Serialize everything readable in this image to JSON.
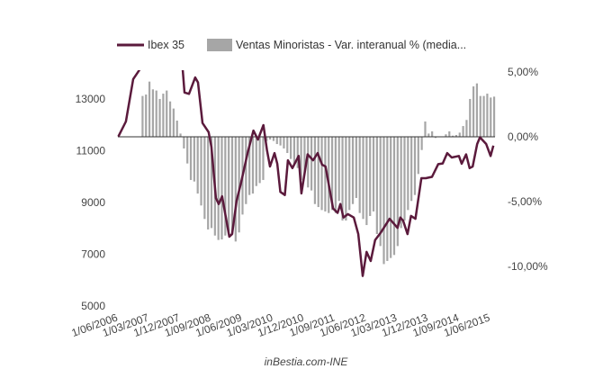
{
  "chart_data": {
    "type": "bar+line",
    "x_unit": "months since 2006-06",
    "legend": [
      {
        "name": "Ibex 35",
        "kind": "line",
        "color": "#5b1a3c"
      },
      {
        "name": "Ventas Minoristas - Var. interanual % (media...",
        "kind": "bar",
        "color": "#a6a6a6"
      }
    ],
    "legend_position": "top",
    "left_axis": {
      "ticks": [
        "13000",
        "11000",
        "9000",
        "7000",
        "5000"
      ],
      "tick_values": [
        13000,
        11000,
        9000,
        7000,
        5000
      ]
    },
    "right_axis": {
      "ticks": [
        "5,00%",
        "0,00%",
        "-5,00%",
        "-10,00%"
      ],
      "tick_values": [
        5,
        0,
        -5,
        -10
      ]
    },
    "x_ticks": [
      "1/06/2006",
      "1/03/2007",
      "1/12/2007",
      "1/09/2008",
      "1/06/2009",
      "1/03/2010",
      "1/12/2010",
      "1/09/2011",
      "1/06/2012",
      "1/03/2013",
      "1/12/2013",
      "1/09/2014",
      "1/06/2015"
    ],
    "x_tick_months": [
      0,
      9,
      18,
      27,
      36,
      45,
      54,
      63,
      72,
      81,
      90,
      99,
      108
    ],
    "source": "inBestia.com-INE",
    "ibex": [
      [
        0,
        11550
      ],
      [
        2.2,
        12130
      ],
      [
        4.3,
        13770
      ],
      [
        5.6,
        14020
      ],
      [
        8,
        14500
      ],
      [
        11,
        14800
      ],
      [
        13,
        14900
      ],
      [
        15,
        15200
      ],
      [
        17,
        15900
      ],
      [
        18.7,
        14100
      ],
      [
        19.2,
        13250
      ],
      [
        20.5,
        13200
      ],
      [
        22.3,
        13830
      ],
      [
        23.1,
        13640
      ],
      [
        24.4,
        12070
      ],
      [
        26.2,
        11720
      ],
      [
        27,
        11150
      ],
      [
        28.3,
        9170
      ],
      [
        29.1,
        8940
      ],
      [
        30.1,
        9240
      ],
      [
        32.2,
        7680
      ],
      [
        33,
        7780
      ],
      [
        34.3,
        9070
      ],
      [
        35.6,
        9760
      ],
      [
        37.5,
        10910
      ],
      [
        39.2,
        11780
      ],
      [
        40.5,
        11430
      ],
      [
        42.1,
        11990
      ],
      [
        43.1,
        11030
      ],
      [
        44,
        10390
      ],
      [
        45.3,
        10910
      ],
      [
        46.1,
        10500
      ],
      [
        47,
        9410
      ],
      [
        48.3,
        9290
      ],
      [
        49.2,
        10630
      ],
      [
        50.5,
        10330
      ],
      [
        52.3,
        10800
      ],
      [
        53.1,
        9350
      ],
      [
        54.9,
        10860
      ],
      [
        56.5,
        10630
      ],
      [
        57.8,
        10910
      ],
      [
        59.1,
        10460
      ],
      [
        60.1,
        10390
      ],
      [
        62.3,
        8770
      ],
      [
        63.6,
        8600
      ],
      [
        64.4,
        8940
      ],
      [
        65.3,
        8420
      ],
      [
        66.6,
        8550
      ],
      [
        68.3,
        8420
      ],
      [
        69.6,
        7780
      ],
      [
        70.9,
        6160
      ],
      [
        72,
        7090
      ],
      [
        73.2,
        6740
      ],
      [
        74.5,
        7550
      ],
      [
        76.2,
        7850
      ],
      [
        78.7,
        8370
      ],
      [
        81,
        8020
      ],
      [
        81.8,
        8420
      ],
      [
        82.6,
        8300
      ],
      [
        83.9,
        7780
      ],
      [
        84.9,
        8480
      ],
      [
        86.2,
        8370
      ],
      [
        87.9,
        9940
      ],
      [
        89.2,
        9940
      ],
      [
        91,
        9990
      ],
      [
        92.8,
        10480
      ],
      [
        94.1,
        10510
      ],
      [
        95.4,
        10910
      ],
      [
        96.7,
        10740
      ],
      [
        98.8,
        10800
      ],
      [
        99.6,
        10500
      ],
      [
        100.9,
        10860
      ],
      [
        101.9,
        10330
      ],
      [
        102.8,
        10390
      ],
      [
        104.1,
        11260
      ],
      [
        104.9,
        11520
      ],
      [
        106.7,
        11260
      ],
      [
        108,
        10800
      ],
      [
        108.8,
        11200
      ]
    ],
    "ventas_start_month": 7,
    "ventas": [
      3.15,
      3.26,
      4.26,
      3.66,
      3.57,
      2.92,
      3.33,
      3.57,
      2.73,
      2.18,
      1.25,
      0.25,
      -0.9,
      -2.06,
      -3.33,
      -3.45,
      -4.38,
      -5.3,
      -6.34,
      -7.15,
      -7.04,
      -7.62,
      -7.96,
      -7.92,
      -7.62,
      -7.27,
      -7.5,
      -8.08,
      -7.38,
      -6.0,
      -5.19,
      -4.49,
      -4.38,
      -3.8,
      -3.57,
      -3.33,
      -0.32,
      -0.21,
      -0.32,
      -0.56,
      -0.67,
      -0.9,
      -1.25,
      -1.71,
      -2.18,
      -2.41,
      -3.33,
      -2.87,
      -3.91,
      -4.14,
      -5.19,
      -5.42,
      -5.65,
      -5.76,
      -5.88,
      -5.65,
      -5.88,
      -4.95,
      -6.46,
      -6.46,
      -5.65,
      -5.19,
      -4.72,
      -5.88,
      -6.34,
      -6.81,
      -6.11,
      -5.76,
      -7.5,
      -8.43,
      -9.82,
      -9.58,
      -9.35,
      -9.12,
      -8.43,
      -7.04,
      -6.46,
      -5.65,
      -4.95,
      -4.49,
      -2.87,
      -1.02,
      1.18,
      0.25,
      0.42,
      -0.09,
      0,
      0,
      0.19,
      0.42,
      0.09,
      0.14,
      0.32,
      0.83,
      1.3,
      2.92,
      3.89,
      4.12,
      3.15,
      3.15,
      3.33,
      3.03,
      3.1
    ]
  }
}
